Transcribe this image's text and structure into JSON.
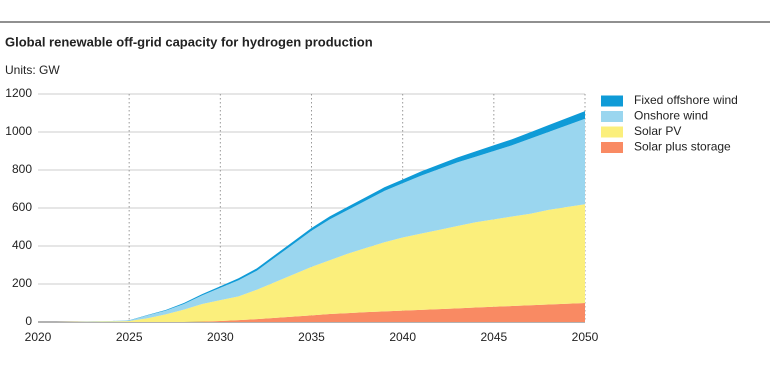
{
  "chart_data": {
    "type": "stacked_area",
    "title": "Global renewable off-grid capacity for hydrogen production",
    "subtitle": "Units: GW",
    "x": [
      2020,
      2021,
      2022,
      2023,
      2024,
      2025,
      2026,
      2027,
      2028,
      2029,
      2030,
      2031,
      2032,
      2033,
      2034,
      2035,
      2036,
      2037,
      2038,
      2039,
      2040,
      2041,
      2042,
      2043,
      2044,
      2045,
      2046,
      2047,
      2048,
      2049,
      2050
    ],
    "xlim": [
      2020,
      2050
    ],
    "xticks": [
      2020,
      2025,
      2030,
      2035,
      2040,
      2045,
      2050
    ],
    "ylim": [
      0,
      1200
    ],
    "yticks": [
      0,
      200,
      400,
      600,
      800,
      1000,
      1200
    ],
    "grid": true,
    "legend": "right",
    "series": [
      {
        "name": "Solar plus storage",
        "color": "#f98a63",
        "values": [
          0,
          0,
          0,
          0,
          0,
          0,
          0,
          0,
          0,
          2,
          5,
          10,
          15,
          22,
          28,
          35,
          42,
          47,
          52,
          56,
          60,
          64,
          68,
          72,
          76,
          80,
          84,
          88,
          92,
          96,
          100
        ]
      },
      {
        "name": "Solar PV",
        "color": "#fbef7c",
        "values": [
          0,
          0,
          1,
          2,
          3,
          5,
          20,
          40,
          65,
          93,
          110,
          125,
          155,
          188,
          222,
          255,
          283,
          313,
          338,
          364,
          385,
          401,
          417,
          433,
          449,
          460,
          471,
          482,
          498,
          509,
          520
        ]
      },
      {
        "name": "Onshore wind",
        "color": "#9ad6ef",
        "values": [
          0,
          0,
          0,
          1,
          2,
          3,
          15,
          20,
          30,
          45,
          65,
          85,
          100,
          130,
          160,
          190,
          215,
          230,
          250,
          270,
          285,
          305,
          320,
          335,
          345,
          360,
          375,
          395,
          410,
          430,
          450
        ]
      },
      {
        "name": "Fixed offshore wind",
        "color": "#0f9bd7",
        "values": [
          0,
          0,
          0,
          0,
          0,
          1,
          2,
          3,
          5,
          7,
          8,
          10,
          12,
          13,
          14,
          15,
          16,
          17,
          18,
          19,
          20,
          22,
          24,
          26,
          28,
          30,
          32,
          34,
          36,
          38,
          40
        ]
      }
    ]
  }
}
